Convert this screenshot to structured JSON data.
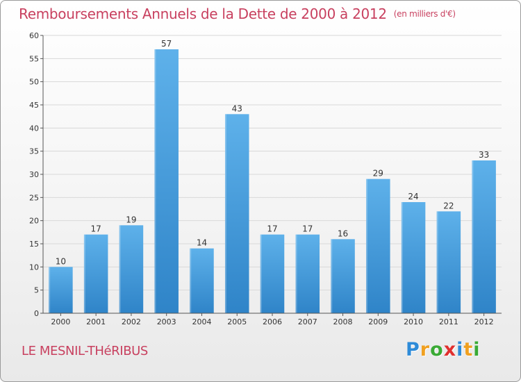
{
  "title": "Remboursements Annuels de la Dette de 2000 à 2012",
  "unit_label": "(en milliers d'€)",
  "city": "LE MESNIL-THéRIBUS",
  "logo": {
    "text": "Proxiti",
    "letter_colors": [
      "#2e8bd8",
      "#f0a020",
      "#3aaa35",
      "#e0302e",
      "#2e8bd8",
      "#f0a020",
      "#3aaa35"
    ]
  },
  "colors": {
    "title": "#c8405f",
    "bar_top": "#5eb1ea",
    "bar_bottom": "#2f84c8",
    "grid": "#d8d8d8",
    "axis": "#555555"
  },
  "chart_data": {
    "type": "bar",
    "title": "Remboursements Annuels de la Dette de 2000 à 2012",
    "xlabel": "",
    "ylabel": "",
    "ylim": [
      0,
      60
    ],
    "yticks": [
      0,
      5,
      10,
      15,
      20,
      25,
      30,
      35,
      40,
      45,
      50,
      55,
      60
    ],
    "grid": true,
    "categories": [
      "2000",
      "2001",
      "2002",
      "2003",
      "2004",
      "2005",
      "2006",
      "2007",
      "2008",
      "2009",
      "2010",
      "2011",
      "2012"
    ],
    "values": [
      10,
      17,
      19,
      57,
      14,
      43,
      17,
      17,
      16,
      29,
      24,
      22,
      33
    ]
  }
}
